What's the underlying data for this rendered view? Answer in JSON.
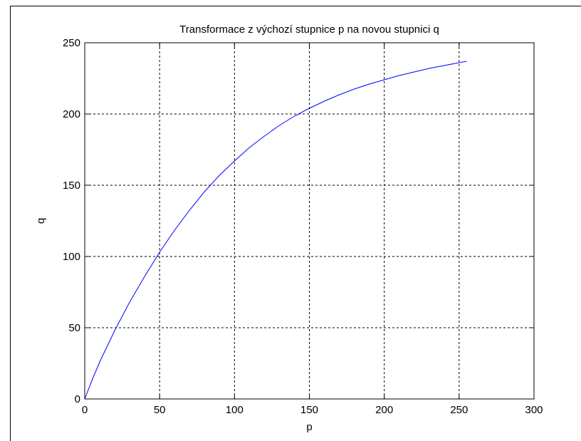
{
  "chart_data": {
    "type": "line",
    "title": "Transformace z výchozí stupnice p na novou stupnici q",
    "xlabel": "p",
    "ylabel": "q",
    "xlim": [
      0,
      300
    ],
    "ylim": [
      0,
      250
    ],
    "xticks": [
      0,
      50,
      100,
      150,
      200,
      250,
      300
    ],
    "yticks": [
      0,
      50,
      100,
      150,
      200,
      250
    ],
    "grid": true,
    "grid_style": "dashed",
    "series": [
      {
        "color": "#0000ff",
        "x": [
          0,
          5,
          10,
          20,
          30,
          40,
          50,
          60,
          70,
          80,
          90,
          100,
          110,
          120,
          130,
          140,
          150,
          160,
          170,
          180,
          190,
          200,
          210,
          220,
          230,
          240,
          250,
          255
        ],
        "y": [
          0,
          13.5,
          26,
          48,
          68,
          86,
          103,
          118.5,
          132.5,
          145.5,
          157,
          167,
          176.5,
          184.5,
          192,
          198.5,
          204,
          209,
          213.5,
          217.5,
          221,
          224,
          227,
          229.5,
          232,
          234,
          236,
          237
        ]
      }
    ]
  }
}
